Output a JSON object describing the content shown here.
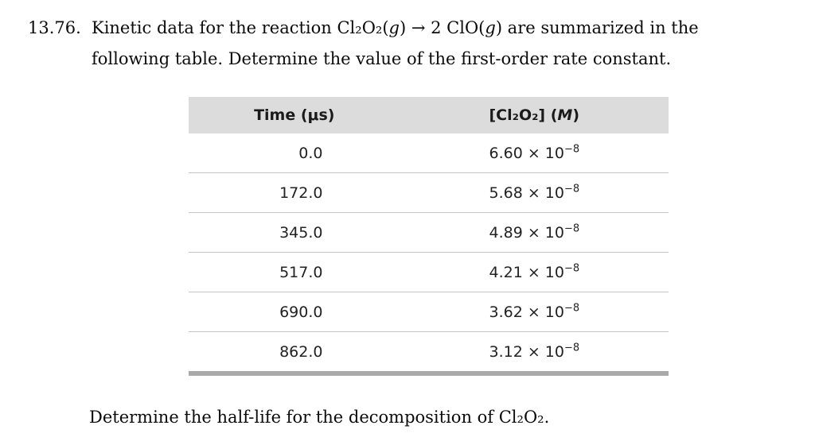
{
  "problem": {
    "number": "13.76.",
    "statement": {
      "s1": "Kinetic data for the reaction Cl₂O₂(",
      "g1": "g",
      "s2": ") → 2 ClO(",
      "g2": "g",
      "s3": ") are summarized in the",
      "s4": "following table. Determine the value of the first-order rate constant."
    },
    "followup": "Determine the half-life for the decomposition of Cl₂O₂."
  },
  "table": {
    "headers": {
      "time": "Time (μs)",
      "conc_pre": "[Cl₂O₂] (",
      "conc_unit": "M",
      "conc_post": ")"
    },
    "rows": [
      {
        "time": "0.0",
        "mantissa": "6.60 × 10",
        "exponent": "−8"
      },
      {
        "time": "172.0",
        "mantissa": "5.68 × 10",
        "exponent": "−8"
      },
      {
        "time": "345.0",
        "mantissa": "4.89 × 10",
        "exponent": "−8"
      },
      {
        "time": "517.0",
        "mantissa": "4.21 × 10",
        "exponent": "−8"
      },
      {
        "time": "690.0",
        "mantissa": "3.62 × 10",
        "exponent": "−8"
      },
      {
        "time": "862.0",
        "mantissa": "3.12 × 10",
        "exponent": "−8"
      }
    ]
  },
  "colors": {
    "header_background": "#dcdcdc",
    "row_divider": "#c6c6c6",
    "table_bottom_bar": "#a9a9a9"
  }
}
